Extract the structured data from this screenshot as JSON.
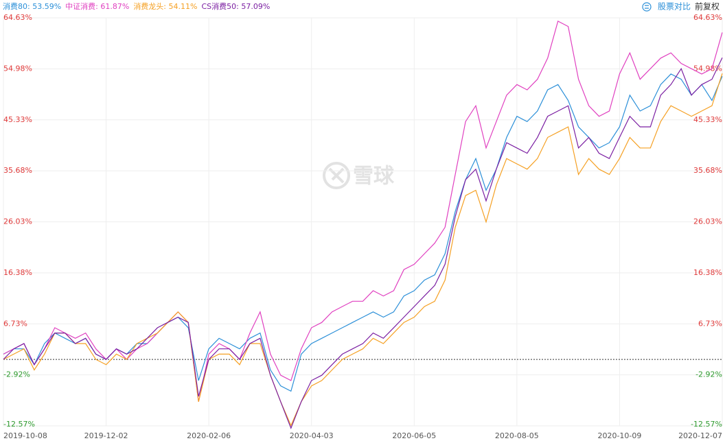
{
  "chart_data": {
    "type": "line",
    "toolbar": [
      "股票对比",
      "前复权"
    ],
    "watermark": "雪球",
    "categories": [
      "2019-10-08",
      null,
      null,
      null,
      null,
      null,
      null,
      null,
      null,
      null,
      "2019-12-02",
      null,
      null,
      null,
      null,
      null,
      null,
      null,
      null,
      null,
      "2020-02-06",
      null,
      null,
      null,
      null,
      null,
      null,
      null,
      null,
      null,
      "2020-04-03",
      null,
      null,
      null,
      null,
      null,
      null,
      null,
      null,
      null,
      "2020-06-05",
      null,
      null,
      null,
      null,
      null,
      null,
      null,
      null,
      null,
      "2020-08-05",
      null,
      null,
      null,
      null,
      null,
      null,
      null,
      null,
      null,
      "2020-10-09",
      null,
      null,
      null,
      null,
      null,
      null,
      null,
      null,
      null,
      "2020-12-07"
    ],
    "ylim": [
      -12.57,
      64.63
    ],
    "yticks": [
      {
        "value": -12.57,
        "label": "-12.57%"
      },
      {
        "value": -2.92,
        "label": "-2.92%"
      },
      {
        "value": 6.73,
        "label": "6.73%"
      },
      {
        "value": 16.38,
        "label": "16.38%"
      },
      {
        "value": 26.03,
        "label": "26.03%"
      },
      {
        "value": 35.68,
        "label": "35.68%"
      },
      {
        "value": 45.33,
        "label": "45.33%"
      },
      {
        "value": 54.98,
        "label": "54.98%"
      },
      {
        "value": 64.63,
        "label": "64.63%"
      }
    ],
    "baseline": 0,
    "grid": true,
    "series": [
      {
        "name": "消费80: 53.59%",
        "color": "#2b8fd8",
        "values": [
          1,
          2,
          2,
          -1,
          3,
          5,
          4,
          3,
          4,
          1,
          0,
          2,
          1,
          3,
          3,
          5,
          7,
          8,
          6,
          -4,
          2,
          4,
          3,
          2,
          4,
          5,
          -2,
          -5,
          -6,
          1,
          3,
          4,
          5,
          6,
          7,
          8,
          9,
          8,
          9,
          12,
          13,
          15,
          16,
          20,
          28,
          34,
          38,
          32,
          36,
          42,
          46,
          45,
          47,
          51,
          52,
          49,
          44,
          42,
          40,
          41,
          44,
          50,
          47,
          48,
          52,
          54,
          53,
          50,
          52,
          49,
          53.59
        ]
      },
      {
        "name": "中证消费: 61.87%",
        "color": "#e040c0",
        "values": [
          1,
          2,
          3,
          -1,
          2,
          6,
          5,
          4,
          5,
          2,
          0,
          2,
          0,
          2,
          3,
          5,
          7,
          9,
          7,
          -8,
          1,
          3,
          2,
          0,
          5,
          9,
          1,
          -3,
          -4,
          2,
          6,
          7,
          9,
          10,
          11,
          11,
          13,
          12,
          13,
          17,
          18,
          20,
          22,
          25,
          35,
          45,
          48,
          40,
          45,
          50,
          52,
          51,
          53,
          57,
          64,
          63,
          53,
          48,
          46,
          47,
          54,
          58,
          53,
          55,
          57,
          58,
          56,
          55,
          54,
          55,
          61.87
        ]
      },
      {
        "name": "消费龙头: 54.11%",
        "color": "#f5a023",
        "values": [
          0,
          1,
          2,
          -2,
          1,
          5,
          5,
          3,
          3,
          0,
          -1,
          1,
          0,
          3,
          4,
          5,
          7,
          9,
          7,
          -8,
          0,
          1,
          1,
          -1,
          3,
          3,
          -3,
          -8,
          -12.5,
          -8,
          -5,
          -4,
          -2,
          0,
          1,
          2,
          4,
          3,
          5,
          7,
          8,
          10,
          11,
          15,
          25,
          31,
          32,
          26,
          33,
          38,
          37,
          36,
          38,
          42,
          43,
          44,
          35,
          38,
          36,
          35,
          38,
          42,
          40,
          40,
          45,
          48,
          47,
          46,
          47,
          48,
          54.11
        ]
      },
      {
        "name": "CS消费50: 57.09%",
        "color": "#7b1fa2",
        "values": [
          0,
          2,
          3,
          -1,
          2,
          5,
          5,
          3,
          4,
          1,
          0,
          2,
          1,
          2,
          4,
          6,
          7,
          8,
          7,
          -7,
          0,
          2,
          2,
          0,
          3,
          4,
          -3,
          -8,
          -13,
          -8,
          -4,
          -3,
          -1,
          1,
          2,
          3,
          5,
          4,
          6,
          8,
          10,
          12,
          14,
          18,
          27,
          34,
          36,
          30,
          36,
          41,
          40,
          39,
          42,
          46,
          47,
          48,
          40,
          42,
          39,
          38,
          42,
          46,
          44,
          44,
          50,
          52,
          55,
          50,
          52,
          53,
          57.09
        ]
      }
    ]
  }
}
